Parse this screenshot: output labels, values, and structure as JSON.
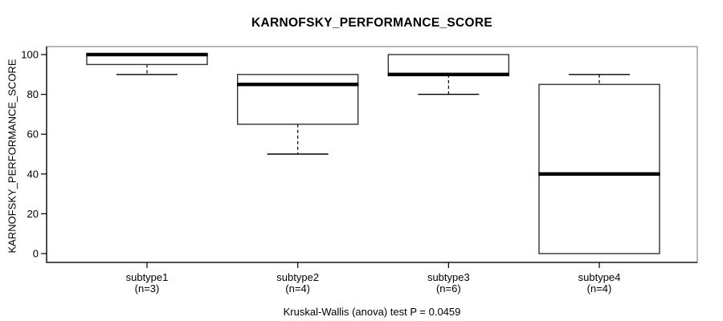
{
  "chart_data": {
    "type": "boxplot",
    "title": "KARNOFSKY_PERFORMANCE_SCORE",
    "ylabel": "KARNOFSKY_PERFORMANCE_SCORE",
    "xlabel": "",
    "footer": "Kruskal-Wallis (anova) test P = 0.0459",
    "ylim": [
      0,
      100
    ],
    "yticks": [
      0,
      20,
      40,
      60,
      80,
      100
    ],
    "grid": false,
    "legend": null,
    "categories": [
      "subtype1",
      "subtype2",
      "subtype3",
      "subtype4"
    ],
    "category_sublabels": [
      "(n=3)",
      "(n=4)",
      "(n=6)",
      "(n=4)"
    ],
    "boxes": [
      {
        "category": "subtype1",
        "n": 3,
        "lower_whisker": 90,
        "q1": 95,
        "median": 100,
        "q3": 100,
        "upper_whisker": 100
      },
      {
        "category": "subtype2",
        "n": 4,
        "lower_whisker": 50,
        "q1": 65,
        "median": 85,
        "q3": 90,
        "upper_whisker": 90
      },
      {
        "category": "subtype3",
        "n": 6,
        "lower_whisker": 80,
        "q1": 90,
        "median": 90,
        "q3": 100,
        "upper_whisker": 100
      },
      {
        "category": "subtype4",
        "n": 4,
        "lower_whisker": 0,
        "q1": 0,
        "median": 40,
        "q3": 85,
        "upper_whisker": 90
      }
    ],
    "colors": {
      "background": "#ffffff",
      "box_fill": "#ffffff",
      "box_border": "#333333",
      "median": "#000000",
      "whisker": "#000000",
      "frame": "#919191",
      "axis": "#000000",
      "text": "#000000"
    }
  }
}
